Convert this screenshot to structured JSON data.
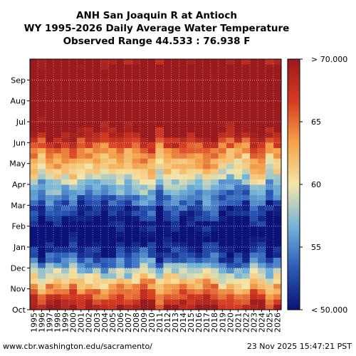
{
  "chart_data": {
    "type": "heatmap",
    "title": [
      "ANH San Joaquin R at Antioch",
      "WY 1995-2026 Daily Average Water Temperature",
      "Observed Range 44.533 : 76.938 F"
    ],
    "x_categories": [
      "1995",
      "1996",
      "1997",
      "1998",
      "1999",
      "2000",
      "2001",
      "2002",
      "2003",
      "2004",
      "2005",
      "2006",
      "2007",
      "2008",
      "2009",
      "2010",
      "2011",
      "2012",
      "2013",
      "2014",
      "2015",
      "2016",
      "2017",
      "2018",
      "2019",
      "2020",
      "2021",
      "2022",
      "2023",
      "2024",
      "2025",
      "2026"
    ],
    "y_categories": [
      "Oct",
      "Nov",
      "Dec",
      "Jan",
      "Feb",
      "Mar",
      "Apr",
      "May",
      "Jun",
      "Jul",
      "Aug",
      "Sep"
    ],
    "monthly_mean_temperature_F": [
      67,
      60.5,
      53,
      48,
      51,
      55,
      60,
      64,
      70,
      74,
      75,
      73
    ],
    "colorbar": {
      "min": 50,
      "max": 70,
      "ticks": [
        50,
        55,
        60,
        65,
        70
      ],
      "tick_labels": [
        "< 50.000",
        "55",
        "60",
        "65",
        "> 70.000"
      ],
      "colors": [
        "#0b137a",
        "#2b5bb8",
        "#74b4d8",
        "#f4e6a8",
        "#f5a34a",
        "#d63b22",
        "#9a1a1d"
      ]
    },
    "units": "F",
    "grid": true
  },
  "footer": {
    "source": "www.cbr.washington.edu/sacramento/",
    "timestamp": "23 Nov 2025 15:47:21 PST"
  }
}
